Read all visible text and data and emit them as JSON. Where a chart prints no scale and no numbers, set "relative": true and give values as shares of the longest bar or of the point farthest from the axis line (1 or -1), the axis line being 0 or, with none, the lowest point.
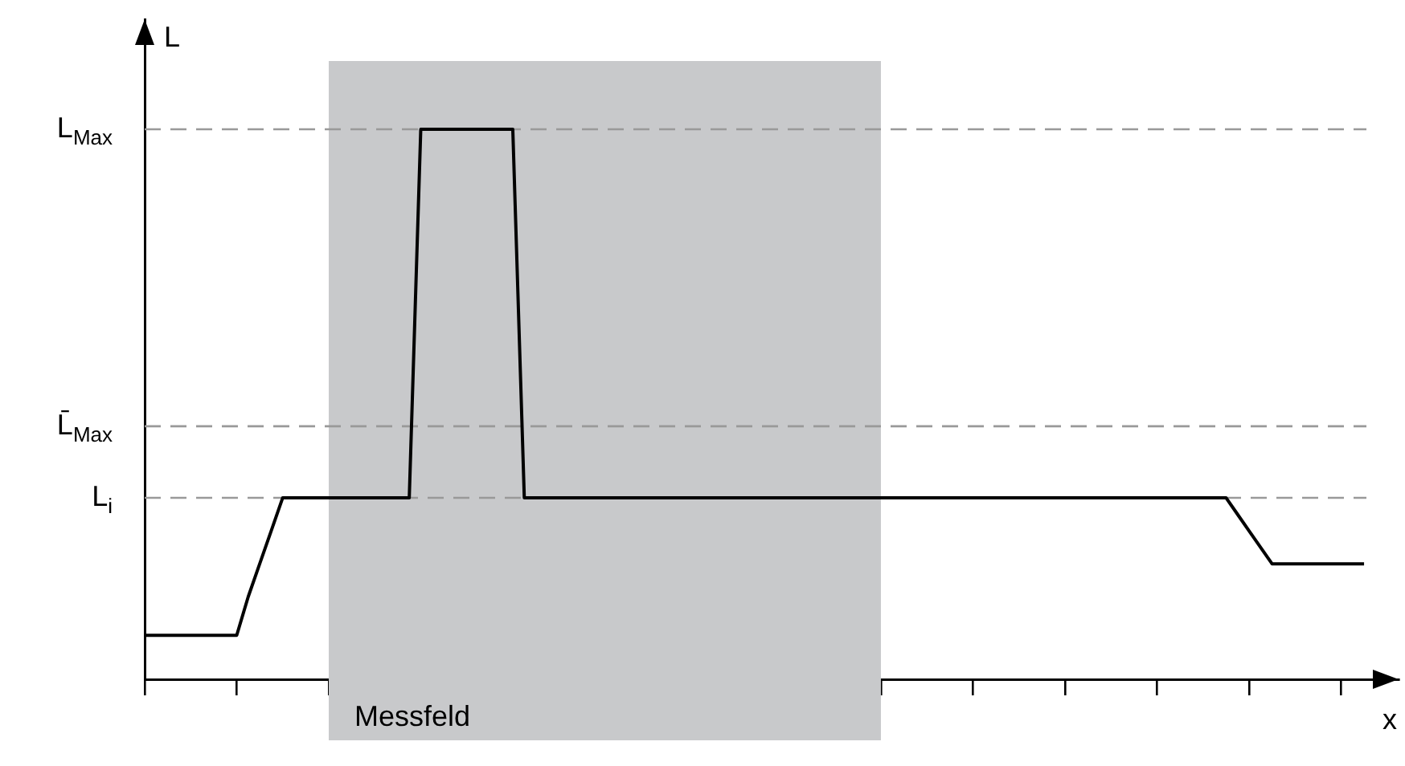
{
  "chart_data": {
    "type": "line",
    "xlabel": "x",
    "ylabel": "L",
    "relative": true,
    "categories": [
      null,
      null,
      null,
      null,
      null,
      null,
      null,
      null,
      null,
      null,
      null,
      null,
      null,
      null,
      null,
      null,
      null,
      null,
      null,
      null,
      null,
      null,
      null,
      null,
      null,
      null,
      null,
      null,
      null,
      null,
      null,
      null,
      null,
      null,
      null,
      null,
      null,
      null,
      null,
      null,
      null,
      null,
      null,
      null,
      null,
      null,
      null,
      null,
      null,
      null,
      null,
      null,
      null,
      null,
      null,
      null,
      null,
      null,
      null,
      null,
      null,
      null,
      null,
      null,
      null,
      null,
      null,
      null,
      null,
      null,
      null,
      null,
      null,
      null,
      null,
      null,
      null,
      null,
      null,
      null,
      null,
      null,
      null,
      null,
      null,
      null,
      null,
      null,
      null,
      null,
      null,
      null,
      null,
      null,
      null,
      null,
      null,
      null,
      null,
      null,
      null,
      null,
      null,
      null,
      null,
      null,
      null,
      null,
      null,
      null
    ],
    "values": [
      0.08,
      0.08,
      0.08,
      0.08,
      0.08,
      0.08,
      0.08,
      0.08,
      0.08,
      0.15,
      0.21,
      0.27,
      0.33,
      0.33,
      0.33,
      0.33,
      0.33,
      0.33,
      0.33,
      0.33,
      0.33,
      0.33,
      0.33,
      0.33,
      1,
      1,
      1,
      1,
      1,
      1,
      1,
      1,
      1,
      0.33,
      0.33,
      0.33,
      0.33,
      0.33,
      0.33,
      0.33,
      0.33,
      0.33,
      0.33,
      0.33,
      0.33,
      0.33,
      0.33,
      0.33,
      0.33,
      0.33,
      0.33,
      0.33,
      0.33,
      0.33,
      0.33,
      0.33,
      0.33,
      0.33,
      0.33,
      0.33,
      0.33,
      0.33,
      0.33,
      0.33,
      0.33,
      0.33,
      0.33,
      0.33,
      0.33,
      0.33,
      0.33,
      0.33,
      0.33,
      0.33,
      0.33,
      0.33,
      0.33,
      0.33,
      0.33,
      0.33,
      0.33,
      0.33,
      0.33,
      0.33,
      0.33,
      0.33,
      0.33,
      0.33,
      0.33,
      0.33,
      0.33,
      0.33,
      0.33,
      0.33,
      0.33,
      0.3,
      0.27,
      0.24,
      0.21,
      0.21,
      0.21,
      0.21,
      0.21,
      0.21,
      0.21,
      0.21,
      0.21,
      null,
      null,
      null
    ],
    "color": "#000000",
    "annotations": [
      "Messfeld"
    ],
    "ref_lines": [
      {
        "axis": "y",
        "value": 1,
        "label": "L$_{Max}$",
        "color": "#999999",
        "line_style": "dashed"
      },
      {
        "axis": "y",
        "value": 0.46,
        "label": "L̄$_{Max}$",
        "color": "#999999",
        "line_style": "dashed"
      },
      {
        "axis": "y",
        "value": 0.33,
        "label": "L$_{i}$",
        "color": "#999999",
        "line_style": "dashed"
      }
    ]
  }
}
